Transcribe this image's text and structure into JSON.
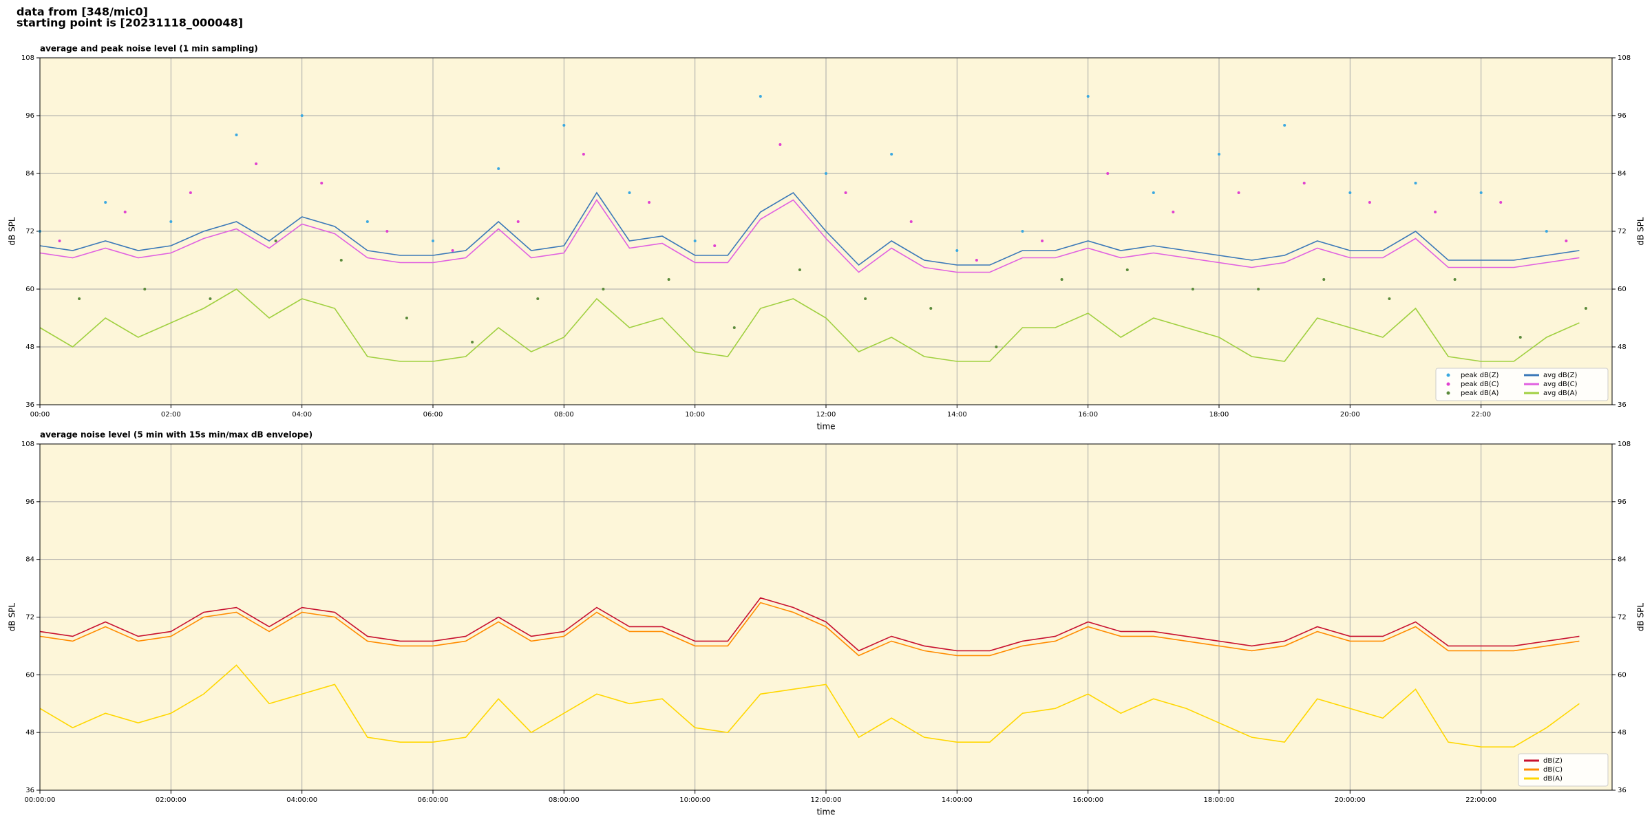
{
  "header": {
    "lines": [
      "data from [348/mic0]",
      "starting point is [20231118_000048]"
    ]
  },
  "chart_data": [
    {
      "type": "line",
      "title": "average and peak noise level (1 min sampling)",
      "xlabel": "time",
      "ylabel": "dB SPL",
      "xlim": [
        0,
        24
      ],
      "ylim": [
        36,
        108
      ],
      "yticks": [
        36,
        48,
        60,
        72,
        84,
        96,
        108
      ],
      "xticks": [
        {
          "value": 0,
          "label": "00:00"
        },
        {
          "value": 2,
          "label": "02:00"
        },
        {
          "value": 4,
          "label": "04:00"
        },
        {
          "value": 6,
          "label": "06:00"
        },
        {
          "value": 8,
          "label": "08:00"
        },
        {
          "value": 10,
          "label": "10:00"
        },
        {
          "value": 12,
          "label": "12:00"
        },
        {
          "value": 14,
          "label": "14:00"
        },
        {
          "value": 16,
          "label": "16:00"
        },
        {
          "value": 18,
          "label": "18:00"
        },
        {
          "value": 20,
          "label": "20:00"
        },
        {
          "value": 22,
          "label": "22:00"
        }
      ],
      "grid": true,
      "legend": "lower right",
      "background": "#fdf6d9",
      "x": [
        0,
        0.5,
        1,
        1.5,
        2,
        2.5,
        3,
        3.5,
        4,
        4.5,
        5,
        5.5,
        6,
        6.5,
        7,
        7.5,
        8,
        8.5,
        9,
        9.5,
        10,
        10.5,
        11,
        11.5,
        12,
        12.5,
        13,
        13.5,
        14,
        14.5,
        15,
        15.5,
        16,
        16.5,
        17,
        17.5,
        18,
        18.5,
        19,
        19.5,
        20,
        20.5,
        21,
        21.5,
        22,
        22.5,
        23,
        23.5
      ],
      "series": [
        {
          "name": "peak dB(Z)",
          "color": "#3aa8e0",
          "type": "scatter",
          "x": [
            0,
            1,
            2,
            3,
            4,
            5,
            6,
            7,
            8,
            9,
            10,
            11,
            12,
            13,
            14,
            15,
            16,
            17,
            18,
            19,
            20,
            21,
            22,
            23
          ],
          "values": [
            72,
            78,
            74,
            92,
            96,
            74,
            70,
            85,
            94,
            80,
            70,
            100,
            84,
            88,
            68,
            72,
            100,
            80,
            88,
            94,
            80,
            82,
            80,
            72
          ]
        },
        {
          "name": "peak dB(C)",
          "color": "#e040d0",
          "type": "scatter",
          "x": [
            0.3,
            1.3,
            2.3,
            3.3,
            4.3,
            5.3,
            6.3,
            7.3,
            8.3,
            9.3,
            10.3,
            11.3,
            12.3,
            13.3,
            14.3,
            15.3,
            16.3,
            17.3,
            18.3,
            19.3,
            20.3,
            21.3,
            22.3,
            23.3
          ],
          "values": [
            70,
            76,
            80,
            86,
            82,
            72,
            68,
            74,
            88,
            78,
            69,
            90,
            80,
            74,
            66,
            70,
            84,
            76,
            80,
            82,
            78,
            76,
            78,
            70
          ]
        },
        {
          "name": "peak dB(A)",
          "color": "#5a8a3a",
          "type": "scatter",
          "x": [
            0.6,
            1.6,
            2.6,
            3.6,
            4.6,
            5.6,
            6.6,
            7.6,
            8.6,
            9.6,
            10.6,
            11.6,
            12.6,
            13.6,
            14.6,
            15.6,
            16.6,
            17.6,
            18.6,
            19.6,
            20.6,
            21.6,
            22.6,
            23.6
          ],
          "values": [
            58,
            60,
            58,
            70,
            66,
            54,
            49,
            58,
            60,
            62,
            52,
            64,
            58,
            56,
            48,
            62,
            64,
            60,
            60,
            62,
            58,
            62,
            50,
            56
          ]
        },
        {
          "name": "avg dB(Z)",
          "color": "#3a78b8",
          "values": [
            69,
            68,
            70,
            68,
            69,
            72,
            74,
            70,
            75,
            73,
            68,
            67,
            67,
            68,
            74,
            68,
            69,
            80,
            70,
            71,
            67,
            67,
            76,
            80,
            72,
            65,
            70,
            66,
            65,
            65,
            68,
            68,
            70,
            68,
            69,
            68,
            67,
            66,
            67,
            70,
            68,
            68,
            72,
            66,
            66,
            66,
            67,
            68
          ]
        },
        {
          "name": "avg dB(C)",
          "color": "#e060e0",
          "values": [
            67.5,
            66.5,
            68.5,
            66.5,
            67.5,
            70.5,
            72.5,
            68.5,
            73.5,
            71.5,
            66.5,
            65.5,
            65.5,
            66.5,
            72.5,
            66.5,
            67.5,
            78.5,
            68.5,
            69.5,
            65.5,
            65.5,
            74.5,
            78.5,
            70.5,
            63.5,
            68.5,
            64.5,
            63.5,
            63.5,
            66.5,
            66.5,
            68.5,
            66.5,
            67.5,
            66.5,
            65.5,
            64.5,
            65.5,
            68.5,
            66.5,
            66.5,
            70.5,
            64.5,
            64.5,
            64.5,
            65.5,
            66.5
          ]
        },
        {
          "name": "avg dB(A)",
          "color": "#a0d040",
          "values": [
            52,
            48,
            54,
            50,
            53,
            56,
            60,
            54,
            58,
            56,
            46,
            45,
            45,
            46,
            52,
            47,
            50,
            58,
            52,
            54,
            47,
            46,
            56,
            58,
            54,
            47,
            50,
            46,
            45,
            45,
            52,
            52,
            55,
            50,
            54,
            52,
            50,
            46,
            45,
            54,
            52,
            50,
            56,
            46,
            45,
            45,
            50,
            53
          ]
        }
      ]
    },
    {
      "type": "line",
      "title": "average noise level (5 min with 15s min/max dB envelope)",
      "xlabel": "time",
      "ylabel": "dB SPL",
      "xlim": [
        0,
        24
      ],
      "ylim": [
        36,
        108
      ],
      "yticks": [
        36,
        48,
        60,
        72,
        84,
        96,
        108
      ],
      "xticks": [
        {
          "value": 0,
          "label": "00:00:00"
        },
        {
          "value": 2,
          "label": "02:00:00"
        },
        {
          "value": 4,
          "label": "04:00:00"
        },
        {
          "value": 6,
          "label": "06:00:00"
        },
        {
          "value": 8,
          "label": "08:00:00"
        },
        {
          "value": 10,
          "label": "10:00:00"
        },
        {
          "value": 12,
          "label": "12:00:00"
        },
        {
          "value": 14,
          "label": "14:00:00"
        },
        {
          "value": 16,
          "label": "16:00:00"
        },
        {
          "value": 18,
          "label": "18:00:00"
        },
        {
          "value": 20,
          "label": "20:00:00"
        },
        {
          "value": 22,
          "label": "22:00:00"
        }
      ],
      "grid": true,
      "legend": "lower right",
      "background": "#fdf6d9",
      "x": [
        0,
        0.5,
        1,
        1.5,
        2,
        2.5,
        3,
        3.5,
        4,
        4.5,
        5,
        5.5,
        6,
        6.5,
        7,
        7.5,
        8,
        8.5,
        9,
        9.5,
        10,
        10.5,
        11,
        11.5,
        12,
        12.5,
        13,
        13.5,
        14,
        14.5,
        15,
        15.5,
        16,
        16.5,
        17,
        17.5,
        18,
        18.5,
        19,
        19.5,
        20,
        20.5,
        21,
        21.5,
        22,
        22.5,
        23,
        23.5
      ],
      "series": [
        {
          "name": "dB(Z)",
          "color": "#c8102e",
          "values": [
            69,
            68,
            71,
            68,
            69,
            73,
            74,
            70,
            74,
            73,
            68,
            67,
            67,
            68,
            72,
            68,
            69,
            74,
            70,
            70,
            67,
            67,
            76,
            74,
            71,
            65,
            68,
            66,
            65,
            65,
            67,
            68,
            71,
            69,
            69,
            68,
            67,
            66,
            67,
            70,
            68,
            68,
            71,
            66,
            66,
            66,
            67,
            68
          ]
        },
        {
          "name": "dB(C)",
          "color": "#ff8c00",
          "values": [
            68,
            67,
            70,
            67,
            68,
            72,
            73,
            69,
            73,
            72,
            67,
            66,
            66,
            67,
            71,
            67,
            68,
            73,
            69,
            69,
            66,
            66,
            75,
            73,
            70,
            64,
            67,
            65,
            64,
            64,
            66,
            67,
            70,
            68,
            68,
            67,
            66,
            65,
            66,
            69,
            67,
            67,
            70,
            65,
            65,
            65,
            66,
            67
          ]
        },
        {
          "name": "dB(A)",
          "color": "#ffd700",
          "values": [
            53,
            49,
            52,
            50,
            52,
            56,
            62,
            54,
            56,
            58,
            47,
            46,
            46,
            47,
            55,
            48,
            52,
            56,
            54,
            55,
            49,
            48,
            56,
            57,
            58,
            47,
            51,
            47,
            46,
            46,
            52,
            53,
            56,
            52,
            55,
            53,
            50,
            47,
            46,
            55,
            53,
            51,
            57,
            46,
            45,
            45,
            49,
            54
          ]
        }
      ]
    }
  ]
}
